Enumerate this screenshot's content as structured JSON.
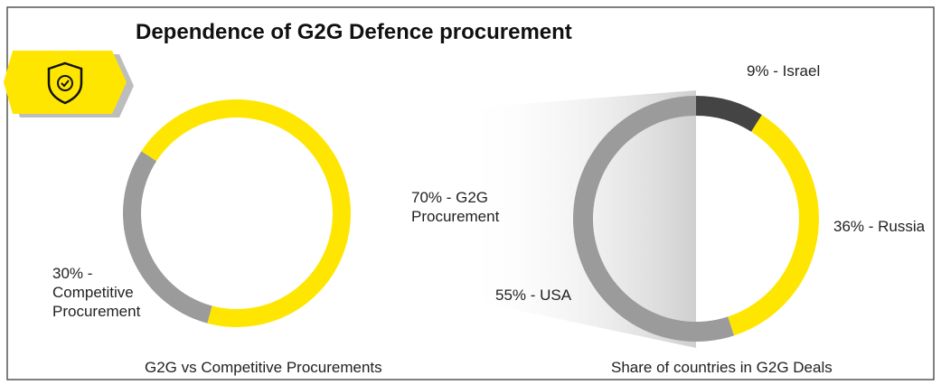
{
  "title": "Dependence of G2G Defence procurement",
  "chart_data": [
    {
      "type": "donut",
      "caption": "G2G vs Competitive Procurements",
      "values": [
        70,
        30
      ],
      "value_labels": [
        "70% - G2G Procurement",
        "30% - Competitive Procurement"
      ],
      "colors": [
        "#ffe600",
        "#9b9b9b"
      ]
    },
    {
      "type": "donut",
      "caption": "Share of countries in G2G Deals",
      "values": [
        9,
        36,
        55
      ],
      "value_labels": [
        "9% - Israel",
        "36% - Russia",
        "55% - USA"
      ],
      "colors": [
        "#444444",
        "#ffe600",
        "#9b9b9b"
      ]
    }
  ]
}
